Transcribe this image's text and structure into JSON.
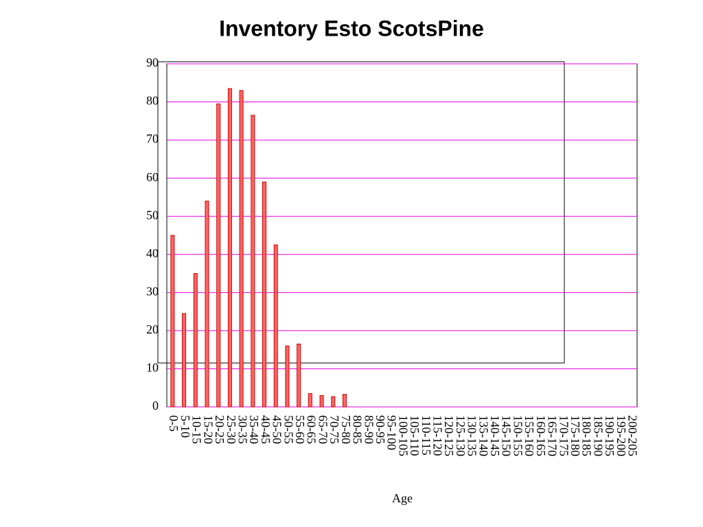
{
  "chart_data": {
    "type": "bar",
    "title": "Inventory Esto ScotsPine",
    "x_label": "Age",
    "categories": [
      "0-5",
      "5-10",
      "10-15",
      "15-20",
      "20-25",
      "25-30",
      "30-35",
      "35-40",
      "40-45",
      "45-50",
      "50-55",
      "55-60",
      "60-65",
      "65-70",
      "70-75",
      "75-80",
      "80-85",
      "85-90",
      "90-95",
      "95-100",
      "100-105",
      "105-110",
      "110-115",
      "115-120",
      "120-125",
      "125-130",
      "130-135",
      "135-140",
      "140-145",
      "145-150",
      "150-155",
      "155-160",
      "160-165",
      "165-170",
      "170-175",
      "175-180",
      "180-185",
      "185-190",
      "190-195",
      "195-200",
      "200-205"
    ],
    "values": [
      45,
      24.5,
      35,
      54,
      79.5,
      83.5,
      83,
      76.5,
      59,
      42.5,
      16,
      16.5,
      3.5,
      3,
      2.7,
      3.3,
      0,
      0,
      0,
      0,
      0,
      0,
      0,
      0,
      0,
      0,
      0,
      0,
      0,
      0,
      0,
      0,
      0,
      0,
      0,
      0,
      0,
      0,
      0,
      0,
      0
    ],
    "color": "#ff6666",
    "ylim": [
      0,
      90
    ],
    "yticks": [
      0,
      10,
      20,
      30,
      40,
      50,
      60,
      70,
      80,
      90
    ],
    "grid": true,
    "grid_color": "#e000e0"
  }
}
